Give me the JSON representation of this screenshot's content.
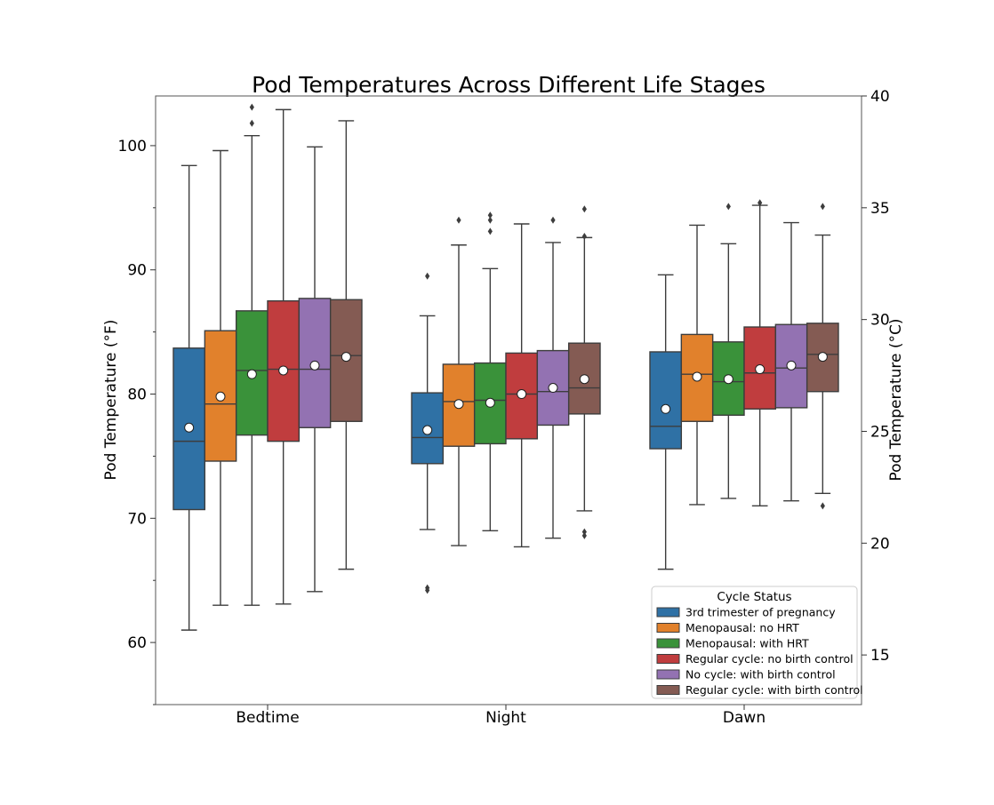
{
  "chart_data": {
    "type": "box",
    "title": "Pod Temperatures Across Different Life Stages",
    "ylabel": "Pod Temperature (°F)",
    "ylabel_right": "Pod Temperature (°C)",
    "xlabel": "",
    "ylim": [
      55,
      104
    ],
    "ylim_right": [
      12.78,
      40
    ],
    "yticks": [
      60,
      70,
      80,
      90,
      100
    ],
    "yticks_right": [
      15,
      20,
      25,
      30,
      35,
      40
    ],
    "grid": false,
    "legend_position": "bottom-right",
    "legend_title": "Cycle Status",
    "categories": [
      "Bedtime",
      "Night",
      "Dawn"
    ],
    "series": [
      {
        "name": "3rd trimester of pregnancy",
        "color": "#2f71a5",
        "boxes": [
          {
            "whisker_low": 61.0,
            "q1": 70.7,
            "median": 76.2,
            "q3": 83.7,
            "whisker_high": 98.4,
            "mean": 77.3,
            "outliers": []
          },
          {
            "whisker_low": 69.1,
            "q1": 74.4,
            "median": 76.5,
            "q3": 80.1,
            "whisker_high": 86.3,
            "mean": 77.1,
            "outliers": [
              89.5,
              64.4,
              64.2
            ]
          },
          {
            "whisker_low": 65.9,
            "q1": 75.6,
            "median": 77.4,
            "q3": 83.4,
            "whisker_high": 89.6,
            "mean": 78.8,
            "outliers": []
          }
        ]
      },
      {
        "name": "Menopausal: no HRT",
        "color": "#e1812c",
        "boxes": [
          {
            "whisker_low": 63.0,
            "q1": 74.6,
            "median": 79.2,
            "q3": 85.1,
            "whisker_high": 99.6,
            "mean": 79.8,
            "outliers": []
          },
          {
            "whisker_low": 67.8,
            "q1": 75.8,
            "median": 79.4,
            "q3": 82.4,
            "whisker_high": 92.0,
            "mean": 79.2,
            "outliers": [
              94.0
            ]
          },
          {
            "whisker_low": 71.1,
            "q1": 77.8,
            "median": 81.6,
            "q3": 84.8,
            "whisker_high": 93.6,
            "mean": 81.4,
            "outliers": []
          }
        ]
      },
      {
        "name": "Menopausal: with HRT",
        "color": "#3a923a",
        "boxes": [
          {
            "whisker_low": 63.0,
            "q1": 76.7,
            "median": 81.9,
            "q3": 86.7,
            "whisker_high": 100.8,
            "mean": 81.6,
            "outliers": [
              103.1,
              101.8
            ]
          },
          {
            "whisker_low": 69.0,
            "q1": 76.0,
            "median": 79.5,
            "q3": 82.5,
            "whisker_high": 90.1,
            "mean": 79.3,
            "outliers": [
              94.4,
              94.0,
              93.1
            ]
          },
          {
            "whisker_low": 71.6,
            "q1": 78.3,
            "median": 81.0,
            "q3": 84.2,
            "whisker_high": 92.1,
            "mean": 81.2,
            "outliers": [
              95.1
            ]
          }
        ]
      },
      {
        "name": "Regular cycle: no birth control",
        "color": "#c03d3e",
        "boxes": [
          {
            "whisker_low": 63.1,
            "q1": 76.2,
            "median": 82.0,
            "q3": 87.5,
            "whisker_high": 102.9,
            "mean": 81.9,
            "outliers": []
          },
          {
            "whisker_low": 67.7,
            "q1": 76.4,
            "median": 80.0,
            "q3": 83.3,
            "whisker_high": 93.7,
            "mean": 80.0,
            "outliers": []
          },
          {
            "whisker_low": 71.0,
            "q1": 78.8,
            "median": 81.7,
            "q3": 85.4,
            "whisker_high": 95.2,
            "mean": 82.0,
            "outliers": [
              95.4
            ]
          }
        ]
      },
      {
        "name": "No cycle: with birth control",
        "color": "#9372b2",
        "boxes": [
          {
            "whisker_low": 64.1,
            "q1": 77.3,
            "median": 82.0,
            "q3": 87.7,
            "whisker_high": 99.9,
            "mean": 82.3,
            "outliers": []
          },
          {
            "whisker_low": 68.4,
            "q1": 77.5,
            "median": 80.2,
            "q3": 83.5,
            "whisker_high": 92.2,
            "mean": 80.5,
            "outliers": [
              94.0
            ]
          },
          {
            "whisker_low": 71.4,
            "q1": 78.9,
            "median": 82.1,
            "q3": 85.6,
            "whisker_high": 93.8,
            "mean": 82.3,
            "outliers": []
          }
        ]
      },
      {
        "name": "Regular cycle: with birth control",
        "color": "#845b53",
        "boxes": [
          {
            "whisker_low": 65.9,
            "q1": 77.8,
            "median": 83.1,
            "q3": 87.6,
            "whisker_high": 102.0,
            "mean": 83.0,
            "outliers": []
          },
          {
            "whisker_low": 70.6,
            "q1": 78.4,
            "median": 80.5,
            "q3": 84.1,
            "whisker_high": 92.6,
            "mean": 81.2,
            "outliers": [
              94.9,
              92.7,
              68.9,
              68.6
            ]
          },
          {
            "whisker_low": 72.0,
            "q1": 80.2,
            "median": 83.2,
            "q3": 85.7,
            "whisker_high": 92.8,
            "mean": 83.0,
            "outliers": [
              95.1,
              71.0
            ]
          }
        ]
      }
    ]
  }
}
